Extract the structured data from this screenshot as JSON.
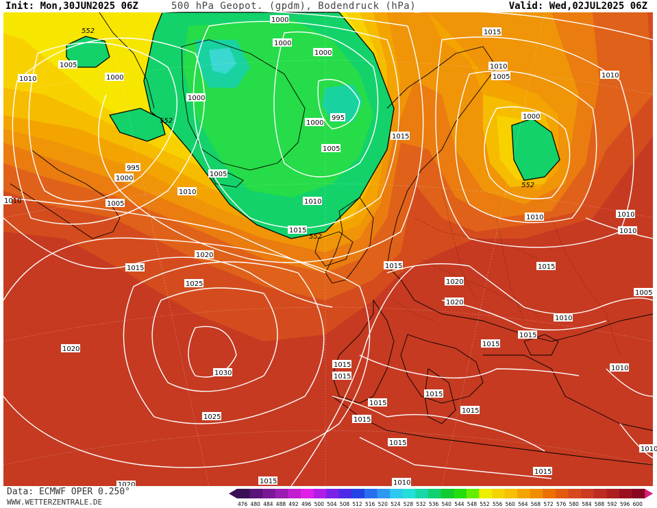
{
  "header": {
    "init": "Init: Mon,30JUN2025 06Z",
    "title": "500 hPa Geopot. (gpdm), Bodendruck (hPa)",
    "valid": "Valid: Wed,02JUL2025 06Z"
  },
  "footer": {
    "data_source": "Data: ECMWF OPER 0.250°",
    "website": "WWW.WETTERZENTRALE.DE"
  },
  "legend": {
    "values": [
      "476",
      "480",
      "484",
      "488",
      "492",
      "496",
      "500",
      "504",
      "508",
      "512",
      "516",
      "520",
      "524",
      "528",
      "532",
      "536",
      "540",
      "544",
      "548",
      "552",
      "556",
      "560",
      "564",
      "568",
      "572",
      "576",
      "580",
      "584",
      "588",
      "592",
      "596",
      "600"
    ],
    "colors": [
      "#3a0f55",
      "#5a147a",
      "#7a1896",
      "#9a1cb0",
      "#c01ed0",
      "#e01ee8",
      "#b01ee6",
      "#7a22e6",
      "#4a2ae6",
      "#2244e6",
      "#2a6ef0",
      "#2e98f0",
      "#2ec8f0",
      "#22e0d8",
      "#18d8a8",
      "#10d070",
      "#10cc30",
      "#22dd10",
      "#66ee00",
      "#eeee00",
      "#f4d400",
      "#f6c000",
      "#f4a400",
      "#f08c00",
      "#ec7000",
      "#e45a10",
      "#d8481e",
      "#cc3a22",
      "#bc2c22",
      "#ac1e20",
      "#9a1020",
      "#880420"
    ]
  },
  "map": {
    "colors": {
      "z600": "#8c0a22",
      "z596": "#a01822",
      "z592": "#b32822",
      "z588": "#c63a22",
      "z584": "#d44c1e",
      "z580": "#e0621a",
      "z576": "#ea7c10",
      "z572": "#f09408",
      "z568": "#f4a400",
      "z564": "#f6bc00",
      "z560": "#f8d200",
      "z556": "#f6e600",
      "z552": "#13d26a",
      "z548": "#26dc48",
      "z544": "#18d2a0",
      "z540": "#3ad8d0"
    },
    "isobar_labels": [
      "1000",
      "1000",
      "1000",
      "1000",
      "995",
      "1000",
      "1005",
      "1015",
      "1010",
      "1010",
      "1015",
      "1005",
      "1005",
      "1000",
      "1005",
      "1010",
      "1010",
      "1000",
      "1015",
      "1015",
      "995",
      "1000",
      "1010",
      "1010",
      "1005",
      "1015",
      "1020",
      "1025",
      "1020",
      "1020",
      "1020",
      "1030",
      "1025",
      "1015",
      "1015",
      "1015",
      "1015",
      "1015",
      "1015",
      "1010",
      "1015",
      "1010",
      "1010",
      "1015",
      "1010",
      "1015",
      "1015",
      "1015",
      "1010",
      "1010",
      "1020",
      "1015",
      "1005",
      "1010"
    ],
    "height_labels": [
      "552",
      "552",
      "552",
      "552"
    ]
  }
}
